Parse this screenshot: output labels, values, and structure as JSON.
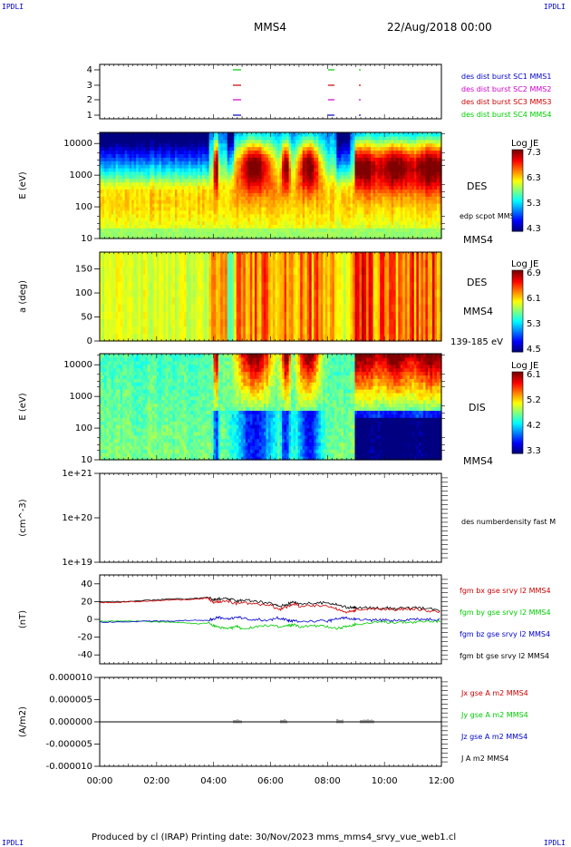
{
  "header": {
    "corner_left_top": "IPDLI",
    "corner_right_top": "IPDLI",
    "spacecraft": "MMS4",
    "date_time": "22/Aug/2018 00:00"
  },
  "footer": {
    "text": "Produced by cl (IRAP)   Printing date: 30/Nov/2023   mms_mms4_srvy_vue_web1.cl",
    "corner_left_bottom": "IPDLI",
    "corner_right_bottom": "IPDLI"
  },
  "time_axis": [
    "00:00",
    "02:00",
    "04:00",
    "06:00",
    "08:00",
    "10:00",
    "12:00"
  ],
  "chart_data": [
    {
      "type": "scatter",
      "id": "burst",
      "yticks": [
        "1",
        "2",
        "3",
        "4"
      ],
      "legend": [
        {
          "label": "des dist burst SC1 MMS1",
          "color": "#0000cc"
        },
        {
          "label": "des dist burst SC2 MMS2",
          "color": "#cc00cc"
        },
        {
          "label": "des dist burst SC3 MMS3",
          "color": "#cc0000"
        },
        {
          "label": "des dist burst SC4 MMS4",
          "color": "#00cc00"
        }
      ]
    },
    {
      "type": "heatmap",
      "id": "des_energy",
      "ylabel": "E (eV)",
      "yticks": [
        "10",
        "100",
        "1000",
        "10000"
      ],
      "instrument": "DES",
      "overlay": "edp scpot MMS4",
      "spacecraft": "MMS4",
      "colorbar": {
        "title": "Log JE",
        "ticks": [
          "7.3",
          "6.3",
          "5.3",
          "4.3"
        ]
      }
    },
    {
      "type": "heatmap",
      "id": "des_pitch",
      "ylabel": "a (deg)",
      "yticks": [
        "0",
        "50",
        "100",
        "150"
      ],
      "instrument": "DES",
      "spacecraft": "MMS4",
      "energy_range": "139-185 eV",
      "colorbar": {
        "title": "Log JE",
        "ticks": [
          "6.9",
          "6.1",
          "5.3",
          "4.5"
        ]
      }
    },
    {
      "type": "heatmap",
      "id": "dis_energy",
      "ylabel": "E (eV)",
      "yticks": [
        "10",
        "100",
        "1000",
        "10000"
      ],
      "instrument": "DIS",
      "spacecraft": "MMS4",
      "colorbar": {
        "title": "Log JE",
        "ticks": [
          "6.1",
          "5.2",
          "4.2",
          "3.3"
        ]
      }
    },
    {
      "type": "line",
      "id": "density",
      "ylabel": "(cm^-3)",
      "yticks": [
        "1e+19",
        "1e+20",
        "1e+21"
      ],
      "legend": [
        {
          "label": "des numberdensity fast M",
          "color": "#000000"
        }
      ]
    },
    {
      "type": "line",
      "id": "fgm",
      "ylabel": "(nT)",
      "ylim": [
        -50,
        50
      ],
      "yticks": [
        "-40",
        "-20",
        "0",
        "20",
        "40"
      ],
      "legend": [
        {
          "label": "fgm bx gse srvy l2 MMS4",
          "color": "#cc0000"
        },
        {
          "label": "fgm by gse srvy l2 MMS4",
          "color": "#00cc00"
        },
        {
          "label": "fgm bz gse srvy l2 MMS4",
          "color": "#0000cc"
        },
        {
          "label": "fgm bt gse srvy l2 MMS4",
          "color": "#000000"
        }
      ],
      "x_hours": [
        0,
        0.5,
        1,
        1.5,
        2,
        2.5,
        3,
        3.5,
        3.8,
        4,
        4.2,
        4.5,
        4.8,
        5,
        5.5,
        6,
        6.3,
        6.6,
        6.8,
        7,
        7.5,
        8,
        8.3,
        8.6,
        8.9,
        9,
        9.5,
        10,
        10.5,
        11,
        11.5,
        12
      ],
      "series": [
        {
          "name": "fgm bx gse srvy l2 MMS4",
          "values": [
            19,
            19,
            20,
            20,
            21,
            22,
            22,
            23,
            24,
            19,
            20,
            20,
            18,
            19,
            17,
            16,
            11,
            14,
            18,
            15,
            15,
            16,
            12,
            8,
            9,
            11,
            11,
            12,
            11,
            12,
            10,
            8
          ]
        },
        {
          "name": "fgm by gse srvy l2 MMS4",
          "values": [
            -2,
            -2,
            -2,
            -2,
            -3,
            -3,
            -4,
            -5,
            -4,
            -7,
            -9,
            -11,
            -8,
            -10,
            -9,
            -6,
            -9,
            -7,
            -6,
            -8,
            -7,
            -8,
            -10,
            -9,
            -7,
            -5,
            -4,
            -3,
            -3,
            -3,
            -2,
            -2
          ]
        },
        {
          "name": "fgm bz gse srvy l2 MMS4",
          "values": [
            -3,
            -3,
            -3,
            -2,
            -2,
            -2,
            -1,
            -1,
            -1,
            1,
            2,
            0,
            3,
            1,
            0,
            -1,
            2,
            -1,
            -2,
            -2,
            -2,
            -2,
            0,
            2,
            1,
            0,
            -1,
            -1,
            -1,
            0,
            0,
            0
          ]
        },
        {
          "name": "fgm bt gse srvy l2 MMS4",
          "values": [
            20,
            20,
            20,
            21,
            22,
            23,
            23,
            24,
            25,
            22,
            23,
            23,
            21,
            22,
            20,
            18,
            15,
            17,
            20,
            18,
            18,
            19,
            17,
            14,
            13,
            13,
            13,
            13,
            12,
            13,
            12,
            10
          ]
        }
      ]
    },
    {
      "type": "line",
      "id": "current",
      "ylabel": "(A/m2)",
      "ylim": [
        -1e-05,
        1e-05
      ],
      "yticks": [
        "0.000010",
        "0.000005",
        "0.000000",
        "-0.000005",
        "-0.000010"
      ],
      "legend": [
        {
          "label": "Jx gse A m2 MMS4",
          "color": "#cc0000"
        },
        {
          "label": "Jy gse A m2 MMS4",
          "color": "#00cc00"
        },
        {
          "label": "Jz gse A m2 MMS4",
          "color": "#0000cc"
        },
        {
          "label": "J A m2 MMS4",
          "color": "#000000"
        }
      ]
    }
  ]
}
